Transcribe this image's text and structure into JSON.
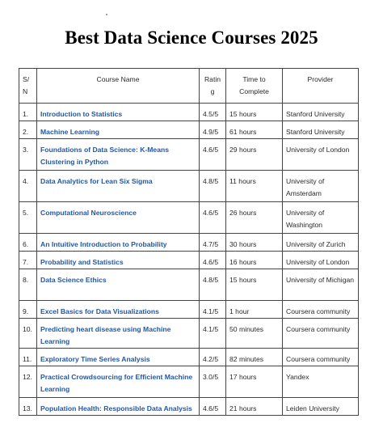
{
  "title": "Best Data Science Courses 2025",
  "table": {
    "headers": {
      "sn": "S/N",
      "course": "Course Name",
      "rating": "Rating",
      "time": "Time to Complete",
      "provider": "Provider"
    },
    "rows": [
      {
        "sn": "1.",
        "course": "Introduction to Statistics",
        "rating": "4.5/5",
        "time": "15 hours",
        "provider": "Stanford University"
      },
      {
        "sn": "2.",
        "course": "Machine Learning",
        "rating": "4.9/5",
        "time": "61 hours",
        "provider": "Stanford University"
      },
      {
        "sn": "3.",
        "course": "Foundations of Data Science: K-Means Clustering in Python",
        "rating": "4.6/5",
        "time": "29 hours",
        "provider": "University of London"
      },
      {
        "sn": "4.",
        "course": "Data Analytics for Lean Six Sigma",
        "rating": "4.8/5",
        "time": "11 hours",
        "provider": "University of Amsterdam"
      },
      {
        "sn": "5.",
        "course": "Computational Neuroscience",
        "rating": "4.6/5",
        "time": "26 hours",
        "provider": "University of Washington"
      },
      {
        "sn": "6.",
        "course": "An Intuitive Introduction to Probability",
        "rating": "4.7/5",
        "time": "30 hours",
        "provider": "University of Zurich"
      },
      {
        "sn": "7.",
        "course": "Probability and Statistics",
        "rating": "4.6/5",
        "time": "16 hours",
        "provider": "University of London"
      },
      {
        "sn": "8.",
        "course": "Data Science Ethics",
        "rating": "4.8/5",
        "time": "15 hours",
        "provider": "University of Michigan"
      },
      {
        "sn": "9.",
        "course": "Excel Basics for Data Visualizations",
        "rating": "4.1/5",
        "time": "1 hour",
        "provider": "Coursera community"
      },
      {
        "sn": "10.",
        "course": "Predicting heart disease using Machine Learning",
        "rating": "4.1/5",
        "time": "50 minutes",
        "provider": "Coursera community"
      },
      {
        "sn": "11.",
        "course": "Exploratory Time Series Analysis",
        "rating": "4.2/5",
        "time": "82 minutes",
        "provider": "Coursera community"
      },
      {
        "sn": "12.",
        "course": "Practical Crowdsourcing for Efficient Machine Learning",
        "rating": "3.0/5",
        "time": "17 hours",
        "provider": "Yandex"
      },
      {
        "sn": "13.",
        "course": "Population Health: Responsible Data Analysis",
        "rating": "4.6/5",
        "time": "21 hours",
        "provider": "Leiden University"
      }
    ]
  }
}
